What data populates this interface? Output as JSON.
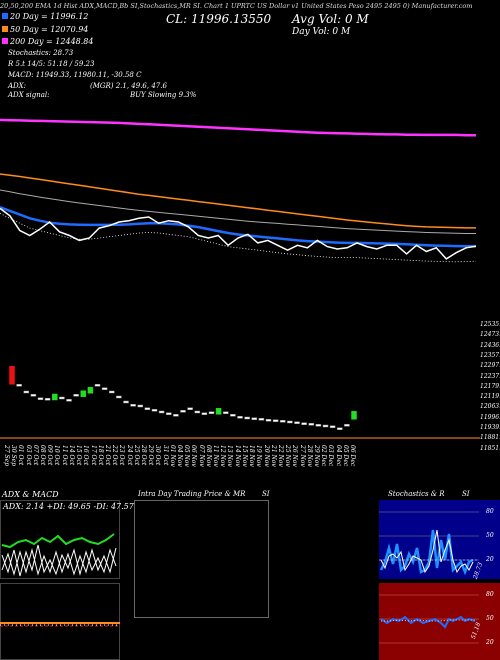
{
  "header": {
    "line_top": "20,50,200 EMA 1d Hist ADX,MACD,Bb     SI,Stochastics,MR        SI. Chart 1 UPRTC        US Dollar v1 United States Peso 2495 2495 0) Manufacturer.com",
    "ema20": "20  Day = 11996.12",
    "ema50": "50  Day = 12070.94",
    "ema200": "200  Day = 12448.84",
    "stochastics": "Stochastics: 28.73",
    "r_line": "R  5.t 14/5: 51.18 / 59.23",
    "macd": "MACD: 11949.33,  11980.11, -30.58  C",
    "adx": "ADX:",
    "mr": "(MGR) 2.1,  49.6,  47.6",
    "adx_signal": "ADX  signal:",
    "buy_signal": "BUY Slowing 9.3%",
    "cl": "CL: 11996.13550",
    "avg_vol": "Avg Vol: 0  M",
    "day_vol": "Day Vol: 0  M"
  },
  "colors": {
    "ema20": "#1e6bff",
    "ema50": "#ff8c1a",
    "ema200": "#ff33ff",
    "price": "#ffffff",
    "bb": "#aaaaaa",
    "up": "#22dd22",
    "down": "#ee1111",
    "stoch_panel": "#00008b",
    "mr_panel": "#8b0000"
  },
  "price_axis_labels": [
    "12535.91",
    "12473.86",
    "12436.49",
    "12357.97",
    "12297.66",
    "12237.79",
    "12179.58",
    "12119.44",
    "12063.62",
    "11996.13",
    "11939.21",
    "11881.22",
    "11851.7"
  ],
  "date_labels": [
    "27 Sep",
    "30 Sep",
    "01 Oct",
    "03 Oct",
    "07 Oct",
    "08 Oct",
    "09 Oct",
    "10 Oct",
    "11 Oct",
    "14 Oct",
    "15 Oct",
    "16 Oct",
    "17 Oct",
    "18 Oct",
    "21 Oct",
    "22 Oct",
    "23 Oct",
    "24 Oct",
    "25 Oct",
    "28 Oct",
    "29 Oct",
    "30 Oct",
    "31 Oct",
    "01 Nov",
    "04 Nov",
    "05 Nov",
    "06 Nov",
    "07 Nov",
    "08 Nov",
    "11 Nov",
    "12 Nov",
    "13 Nov",
    "14 Nov",
    "15 Nov",
    "18 Nov",
    "19 Nov",
    "20 Nov",
    "21 Nov",
    "22 Nov",
    "25 Nov",
    "26 Nov",
    "27 Nov",
    "28 Nov",
    "29 Nov",
    "02 Dec",
    "03 Dec",
    "04 Dec",
    "05 Dec",
    "06 Dec"
  ],
  "chart_data": [
    {
      "type": "line",
      "series": [
        {
          "name": "20 Day",
          "values": [
            12155,
            12140,
            12125,
            12110,
            12100,
            12092,
            12088,
            12085,
            12084,
            12083,
            12083,
            12083,
            12084,
            12085,
            12088,
            12090,
            12090,
            12088,
            12085,
            12080,
            12074,
            12066,
            12058,
            12050,
            12044,
            12040,
            12036,
            12032,
            12028,
            12024,
            12020,
            12017,
            12015,
            12013,
            12011,
            12010,
            12010,
            12009,
            12008,
            12007,
            12006,
            12004,
            12002,
            12000,
            11999,
            11998,
            11997,
            11996,
            11997
          ]
        },
        {
          "name": "50 Day",
          "values": [
            12290,
            12285,
            12280,
            12274,
            12268,
            12262,
            12256,
            12250,
            12244,
            12238,
            12232,
            12226,
            12220,
            12214,
            12208,
            12203,
            12198,
            12193,
            12188,
            12183,
            12178,
            12173,
            12168,
            12163,
            12158,
            12153,
            12148,
            12143,
            12138,
            12133,
            12128,
            12123,
            12118,
            12113,
            12108,
            12103,
            12099,
            12095,
            12091,
            12087,
            12083,
            12080,
            12077,
            12075,
            12074,
            12073,
            12072,
            12071,
            12071
          ]
        },
        {
          "name": "200 Day",
          "values": [
            12510,
            12509,
            12508,
            12507,
            12506,
            12505,
            12504,
            12503,
            12502,
            12501,
            12500,
            12499,
            12498,
            12496,
            12494,
            12492,
            12490,
            12488,
            12486,
            12484,
            12482,
            12480,
            12478,
            12476,
            12474,
            12472,
            12470,
            12468,
            12466,
            12464,
            12462,
            12460,
            12458,
            12457,
            12456,
            12455,
            12454,
            12453,
            12452,
            12451,
            12451,
            12450,
            12450,
            12449,
            12449,
            12449,
            12449,
            12448,
            12448
          ]
        },
        {
          "values": [
            12150,
            12120,
            12060,
            12040,
            12065,
            12095,
            12055,
            12040,
            12020,
            12030,
            12070,
            12080,
            12095,
            12100,
            12110,
            12115,
            12090,
            12100,
            12095,
            12075,
            12040,
            12030,
            12040,
            12000,
            12030,
            12045,
            12010,
            12020,
            12000,
            11980,
            12000,
            11990,
            12020,
            11995,
            11985,
            11990,
            12010,
            11995,
            11985,
            12000,
            12000,
            11965,
            12000,
            11975,
            11990,
            11945,
            11970,
            11990,
            11996
          ]
        },
        {
          "values": [
            12225,
            12218,
            12210,
            12203,
            12196,
            12190,
            12184,
            12178,
            12172,
            12167,
            12162,
            12157,
            12152,
            12147,
            12142,
            12138,
            12134,
            12130,
            12126,
            12122,
            12118,
            12114,
            12110,
            12106,
            12102,
            12098,
            12095,
            12092,
            12089,
            12086,
            12083,
            12080,
            12077,
            12074,
            12071,
            12068,
            12066,
            12064,
            12062,
            12060,
            12058,
            12056,
            12054,
            12052,
            12051,
            12050,
            12049,
            12048,
            12048
          ]
        },
        {
          "values": [
            12130,
            12110,
            12090,
            12070,
            12060,
            12050,
            12040,
            12030,
            12025,
            12025,
            12030,
            12035,
            12040,
            12045,
            12050,
            12052,
            12050,
            12045,
            12040,
            12035,
            12025,
            12015,
            12005,
            11995,
            11990,
            11985,
            11980,
            11975,
            11970,
            11965,
            11962,
            11958,
            11955,
            11952,
            11950,
            11950,
            11950,
            11948,
            11946,
            11944,
            11942,
            11940,
            11938,
            11936,
            11935,
            11934,
            11933,
            11934,
            11936
          ]
        }
      ]
    },
    {
      "type": "bar",
      "candles": [
        {
          "v": 12190,
          "d": -1
        },
        {
          "v": 12160,
          "d": -1
        },
        {
          "v": 12140,
          "d": -1
        },
        {
          "v": 12130,
          "d": -1
        },
        {
          "v": 12120,
          "d": -1
        },
        {
          "v": 12118,
          "d": -1
        },
        {
          "v": 12125,
          "d": 1
        },
        {
          "v": 12122,
          "d": -1
        },
        {
          "v": 12115,
          "d": -1
        },
        {
          "v": 12130,
          "d": -1
        },
        {
          "v": 12135,
          "d": 1
        },
        {
          "v": 12145,
          "d": 1
        },
        {
          "v": 12160,
          "d": -1
        },
        {
          "v": 12150,
          "d": -1
        },
        {
          "v": 12140,
          "d": -1
        },
        {
          "v": 12125,
          "d": -1
        },
        {
          "v": 12110,
          "d": -1
        },
        {
          "v": 12100,
          "d": -1
        },
        {
          "v": 12098,
          "d": -1
        },
        {
          "v": 12090,
          "d": -1
        },
        {
          "v": 12085,
          "d": -1
        },
        {
          "v": 12080,
          "d": -1
        },
        {
          "v": 12075,
          "d": -1
        },
        {
          "v": 12070,
          "d": -1
        },
        {
          "v": 12082,
          "d": -1
        },
        {
          "v": 12090,
          "d": -1
        },
        {
          "v": 12080,
          "d": -1
        },
        {
          "v": 12075,
          "d": -1
        },
        {
          "v": 12078,
          "d": -1
        },
        {
          "v": 12082,
          "d": 1
        },
        {
          "v": 12078,
          "d": -1
        },
        {
          "v": 12070,
          "d": -1
        },
        {
          "v": 12064,
          "d": -1
        },
        {
          "v": 12062,
          "d": -1
        },
        {
          "v": 12060,
          "d": -1
        },
        {
          "v": 12058,
          "d": -1
        },
        {
          "v": 12055,
          "d": -1
        },
        {
          "v": 12054,
          "d": -1
        },
        {
          "v": 12052,
          "d": -1
        },
        {
          "v": 12050,
          "d": -1
        },
        {
          "v": 12048,
          "d": -1
        },
        {
          "v": 12045,
          "d": -1
        },
        {
          "v": 12043,
          "d": -1
        },
        {
          "v": 12040,
          "d": -1
        },
        {
          "v": 12038,
          "d": -1
        },
        {
          "v": 12036,
          "d": -1
        },
        {
          "v": 12030,
          "d": -1
        },
        {
          "v": 12040,
          "d": -1
        },
        {
          "v": 12070,
          "d": 1
        }
      ]
    }
  ],
  "panels": {
    "adx_title": "ADX  & MACD",
    "adx_values": "ADX: 2.14  +DI: 49.65 -DI: 47.57",
    "intraday_title": "Intra  Day Trading Price  & MR",
    "si_label": "SI",
    "stoch_title": "Stochastics & R",
    "si_label2": "SI",
    "stoch_axis": [
      "80",
      "50",
      "20"
    ],
    "stoch_label": "28.73",
    "mr_axis": [
      "80",
      "50",
      "20"
    ],
    "mr_label": "51.18"
  }
}
